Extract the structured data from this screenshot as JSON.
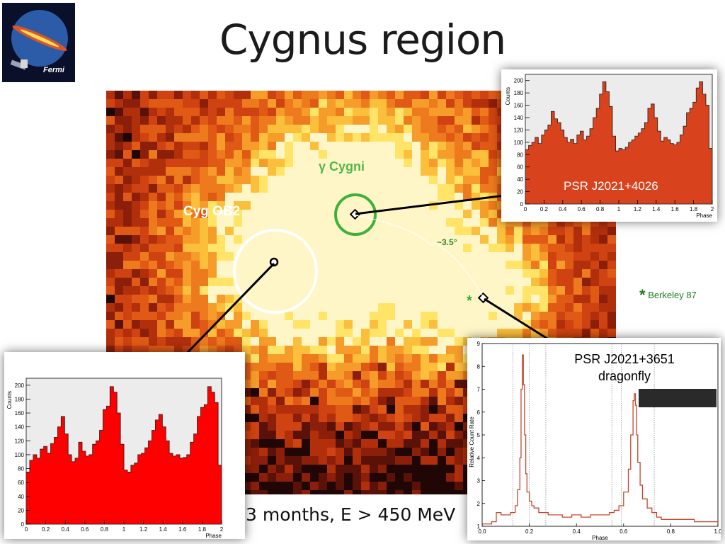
{
  "slide": {
    "title": "Cygnus region",
    "subtitle": "3 months, E > 450 MeV",
    "logo_text": "Fermi"
  },
  "map_labels": {
    "gamma_cygni": "γ Cygni",
    "cyg_ob2": "Cyg OB2",
    "separation": "~3.5°",
    "berkeley": "Berkeley 87",
    "star_glyph": "*"
  },
  "colors": {
    "map_dark": "#2a0905",
    "map_mid": "#c63a0c",
    "map_bright": "#ffe468",
    "hist_top_fill": "#d8421c",
    "hist_bottom_fill": "#ff0000",
    "hist_bg": "#ececec",
    "gamma_cygni_ring": "#3fb13b",
    "cyg_ob2_ring": "#ffffff",
    "label_green": "#2a8c2a",
    "dragonfly_curve": "#c4482e"
  },
  "chart_data": [
    {
      "type": "bar",
      "title": "",
      "annotation": "PSR J2021+4026",
      "ylabel": "Counts",
      "xlabel": "Phase",
      "xlim": [
        0,
        2
      ],
      "ylim": [
        0,
        210
      ],
      "xticks": [
        "0",
        "0.2",
        "0.4",
        "0.6",
        "0.8",
        "1",
        "1.2",
        "1.4",
        "1.6",
        "1.8",
        "2"
      ],
      "yticks": [
        "0",
        "20",
        "40",
        "60",
        "80",
        "100",
        "120",
        "140",
        "160",
        "180",
        "200"
      ],
      "values": [
        88,
        95,
        100,
        108,
        98,
        112,
        120,
        128,
        150,
        138,
        132,
        120,
        108,
        100,
        105,
        98,
        112,
        118,
        104,
        110,
        122,
        140,
        155,
        178,
        198,
        182,
        158,
        110,
        86,
        90,
        88,
        92,
        100,
        104,
        110,
        115,
        122,
        132,
        155,
        162,
        140,
        118,
        102,
        108,
        104,
        98,
        96,
        100,
        112,
        126,
        148,
        155,
        165,
        188,
        198,
        178,
        160,
        90
      ]
    },
    {
      "type": "bar",
      "title": "",
      "ylabel": "Counts",
      "xlabel": "Phase",
      "xlim": [
        0,
        2
      ],
      "ylim": [
        0,
        210
      ],
      "xticks": [
        "0",
        "0.2",
        "0.4",
        "0.6",
        "0.8",
        "1",
        "1.2",
        "1.4",
        "1.6",
        "1.8",
        "2"
      ],
      "yticks": [
        "0",
        "20",
        "40",
        "60",
        "80",
        "100",
        "120",
        "140",
        "160",
        "180",
        "200"
      ],
      "values": [
        75,
        92,
        100,
        95,
        108,
        112,
        102,
        116,
        125,
        140,
        155,
        130,
        100,
        90,
        95,
        118,
        105,
        98,
        100,
        115,
        120,
        135,
        165,
        170,
        198,
        190,
        160,
        115,
        78,
        75,
        85,
        88,
        100,
        102,
        110,
        120,
        135,
        150,
        158,
        140,
        120,
        102,
        98,
        100,
        95,
        96,
        100,
        118,
        130,
        155,
        168,
        172,
        198,
        190,
        175,
        85
      ]
    },
    {
      "type": "line",
      "title": "",
      "annotation": "PSR J2021+3651\ndragonfly",
      "ylabel": "Relative Count Rate",
      "xlabel": "Phase",
      "xlim": [
        0,
        1
      ],
      "ylim": [
        1,
        9
      ],
      "xticks": [
        "0.0",
        "0.2",
        "0.4",
        "0.6",
        "0.8",
        "1.0"
      ],
      "yticks": [
        "1",
        "2",
        "3",
        "4",
        "5",
        "6",
        "7",
        "8",
        "9"
      ],
      "x": [
        0.0,
        0.02,
        0.04,
        0.06,
        0.08,
        0.1,
        0.12,
        0.14,
        0.15,
        0.16,
        0.165,
        0.17,
        0.175,
        0.18,
        0.185,
        0.19,
        0.2,
        0.21,
        0.22,
        0.24,
        0.26,
        0.28,
        0.3,
        0.34,
        0.38,
        0.42,
        0.46,
        0.5,
        0.54,
        0.56,
        0.58,
        0.6,
        0.62,
        0.63,
        0.64,
        0.645,
        0.65,
        0.655,
        0.66,
        0.67,
        0.68,
        0.7,
        0.72,
        0.74,
        0.76,
        0.8,
        0.85,
        0.9,
        0.95,
        1.0
      ],
      "y": [
        1.1,
        1.1,
        1.2,
        1.6,
        1.5,
        1.5,
        1.6,
        1.9,
        2.6,
        4.0,
        7.0,
        8.5,
        7.2,
        5.0,
        3.3,
        2.5,
        2.1,
        1.9,
        1.8,
        1.6,
        1.6,
        1.5,
        1.5,
        1.4,
        1.5,
        1.4,
        1.5,
        1.5,
        1.6,
        1.7,
        1.9,
        2.5,
        3.5,
        5.0,
        6.5,
        6.8,
        6.3,
        5.0,
        3.8,
        2.8,
        2.2,
        1.8,
        1.6,
        1.4,
        1.3,
        1.3,
        1.3,
        1.2,
        1.2,
        1.2
      ],
      "vlines": [
        0.13,
        0.2,
        0.27,
        0.55,
        0.59,
        0.73
      ]
    }
  ]
}
